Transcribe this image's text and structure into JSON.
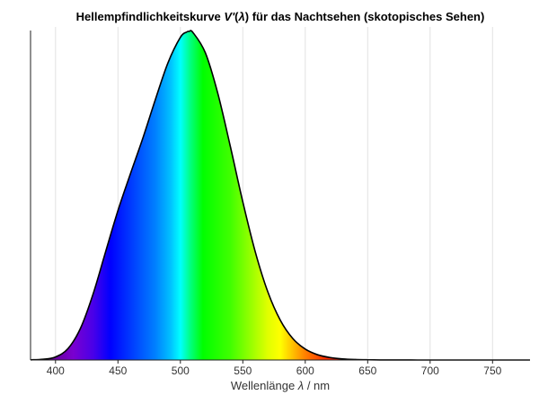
{
  "chart_data": {
    "type": "area",
    "title": "Hellempfindlichkeitskurve V'(λ) für das Nachtsehen (skotopisches Sehen)",
    "title_parts": {
      "before": "Hellempfindlichkeitskurve ",
      "symbol": "V'",
      "middle": "(",
      "lambda": "λ",
      "after": ") für das Nachtsehen (skotopisches Sehen)"
    },
    "xlabel": "Wellenlänge λ / nm",
    "xlabel_parts": {
      "before": "Wellenlänge ",
      "lambda": "λ",
      "after": " / nm"
    },
    "ylabel": "",
    "xlim": [
      380,
      780
    ],
    "ylim": [
      0,
      1
    ],
    "x_ticks": [
      400,
      450,
      500,
      550,
      600,
      650,
      700,
      750
    ],
    "grid": true,
    "legend": "none",
    "fill": "visible spectrum colors",
    "curve_color": "#000000",
    "series": [
      {
        "x": [
          380,
          390,
          400,
          410,
          420,
          430,
          440,
          450,
          460,
          470,
          480,
          490,
          500,
          505,
          507,
          510,
          520,
          530,
          540,
          550,
          560,
          570,
          580,
          590,
          600,
          610,
          620,
          630,
          640,
          650,
          660,
          670,
          680,
          690,
          700,
          720,
          740,
          760,
          780
        ],
        "y": [
          0.0006,
          0.0022,
          0.0093,
          0.0348,
          0.0966,
          0.1998,
          0.3281,
          0.455,
          0.567,
          0.676,
          0.793,
          0.904,
          0.982,
          0.998,
          1.0,
          0.997,
          0.935,
          0.811,
          0.65,
          0.481,
          0.3288,
          0.2076,
          0.1212,
          0.0655,
          0.0332,
          0.0159,
          0.0074,
          0.0033,
          0.0015,
          0.0007,
          0.0003,
          0.0001,
          0.0001,
          0.0,
          0.0,
          0.0,
          0.0,
          0.0,
          0.0
        ]
      }
    ]
  }
}
